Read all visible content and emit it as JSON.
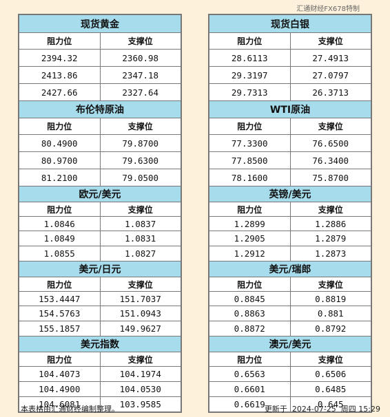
{
  "credit": "汇通财经FX678特制",
  "col_resistance": "阻力位",
  "col_support": "支撑位",
  "left": [
    {
      "title": "现货黄金",
      "h": [
        25,
        23,
        23,
        23
      ],
      "rows": [
        [
          "2394.32",
          "2360.98"
        ],
        [
          "2413.86",
          "2347.18"
        ],
        [
          "2427.66",
          "2327.64"
        ]
      ]
    },
    {
      "title": "布伦特原油",
      "h": [
        24,
        23,
        23,
        23
      ],
      "rows": [
        [
          "80.4900",
          "79.8700"
        ],
        [
          "80.9700",
          "79.6300"
        ],
        [
          "81.2100",
          "79.0500"
        ]
      ]
    },
    {
      "title": "欧元/美元",
      "h": [
        22,
        20,
        20,
        20
      ],
      "rows": [
        [
          "1.0846",
          "1.0837"
        ],
        [
          "1.0849",
          "1.0831"
        ],
        [
          "1.0855",
          "1.0827"
        ]
      ]
    },
    {
      "title": "美元/日元",
      "h": [
        22,
        20,
        20,
        20
      ],
      "rows": [
        [
          "153.4447",
          "151.7037"
        ],
        [
          "154.5763",
          "151.0943"
        ],
        [
          "155.1857",
          "149.9627"
        ]
      ]
    },
    {
      "title": "美元指数",
      "h": [
        22,
        20,
        20,
        20
      ],
      "rows": [
        [
          "104.4073",
          "104.1974"
        ],
        [
          "104.4900",
          "104.0530"
        ],
        [
          "104.6081",
          "103.9585"
        ]
      ]
    }
  ],
  "right": [
    {
      "title": "现货白银",
      "rows": [
        [
          "28.6113",
          "27.4913"
        ],
        [
          "29.3197",
          "27.0797"
        ],
        [
          "29.7313",
          "26.3713"
        ]
      ]
    },
    {
      "title": "WTI原油",
      "rows": [
        [
          "77.3300",
          "76.6500"
        ],
        [
          "77.8500",
          "76.3400"
        ],
        [
          "78.1600",
          "75.8700"
        ]
      ]
    },
    {
      "title": "英镑/美元",
      "rows": [
        [
          "1.2899",
          "1.2886"
        ],
        [
          "1.2905",
          "1.2879"
        ],
        [
          "1.2912",
          "1.2873"
        ]
      ]
    },
    {
      "title": "美元/瑞郎",
      "rows": [
        [
          "0.8845",
          "0.8819"
        ],
        [
          "0.8863",
          "0.881"
        ],
        [
          "0.8872",
          "0.8792"
        ]
      ]
    },
    {
      "title": "澳元/美元",
      "rows": [
        [
          "0.6563",
          "0.6506"
        ],
        [
          "0.6601",
          "0.6485"
        ],
        [
          "0.6619",
          "0.645"
        ]
      ]
    }
  ],
  "footer": {
    "note": "本表格由汇通财经编制整理。",
    "updated_label": "更新于",
    "date": "2024-07-25",
    "weekday": "周四",
    "time": "15:29"
  }
}
